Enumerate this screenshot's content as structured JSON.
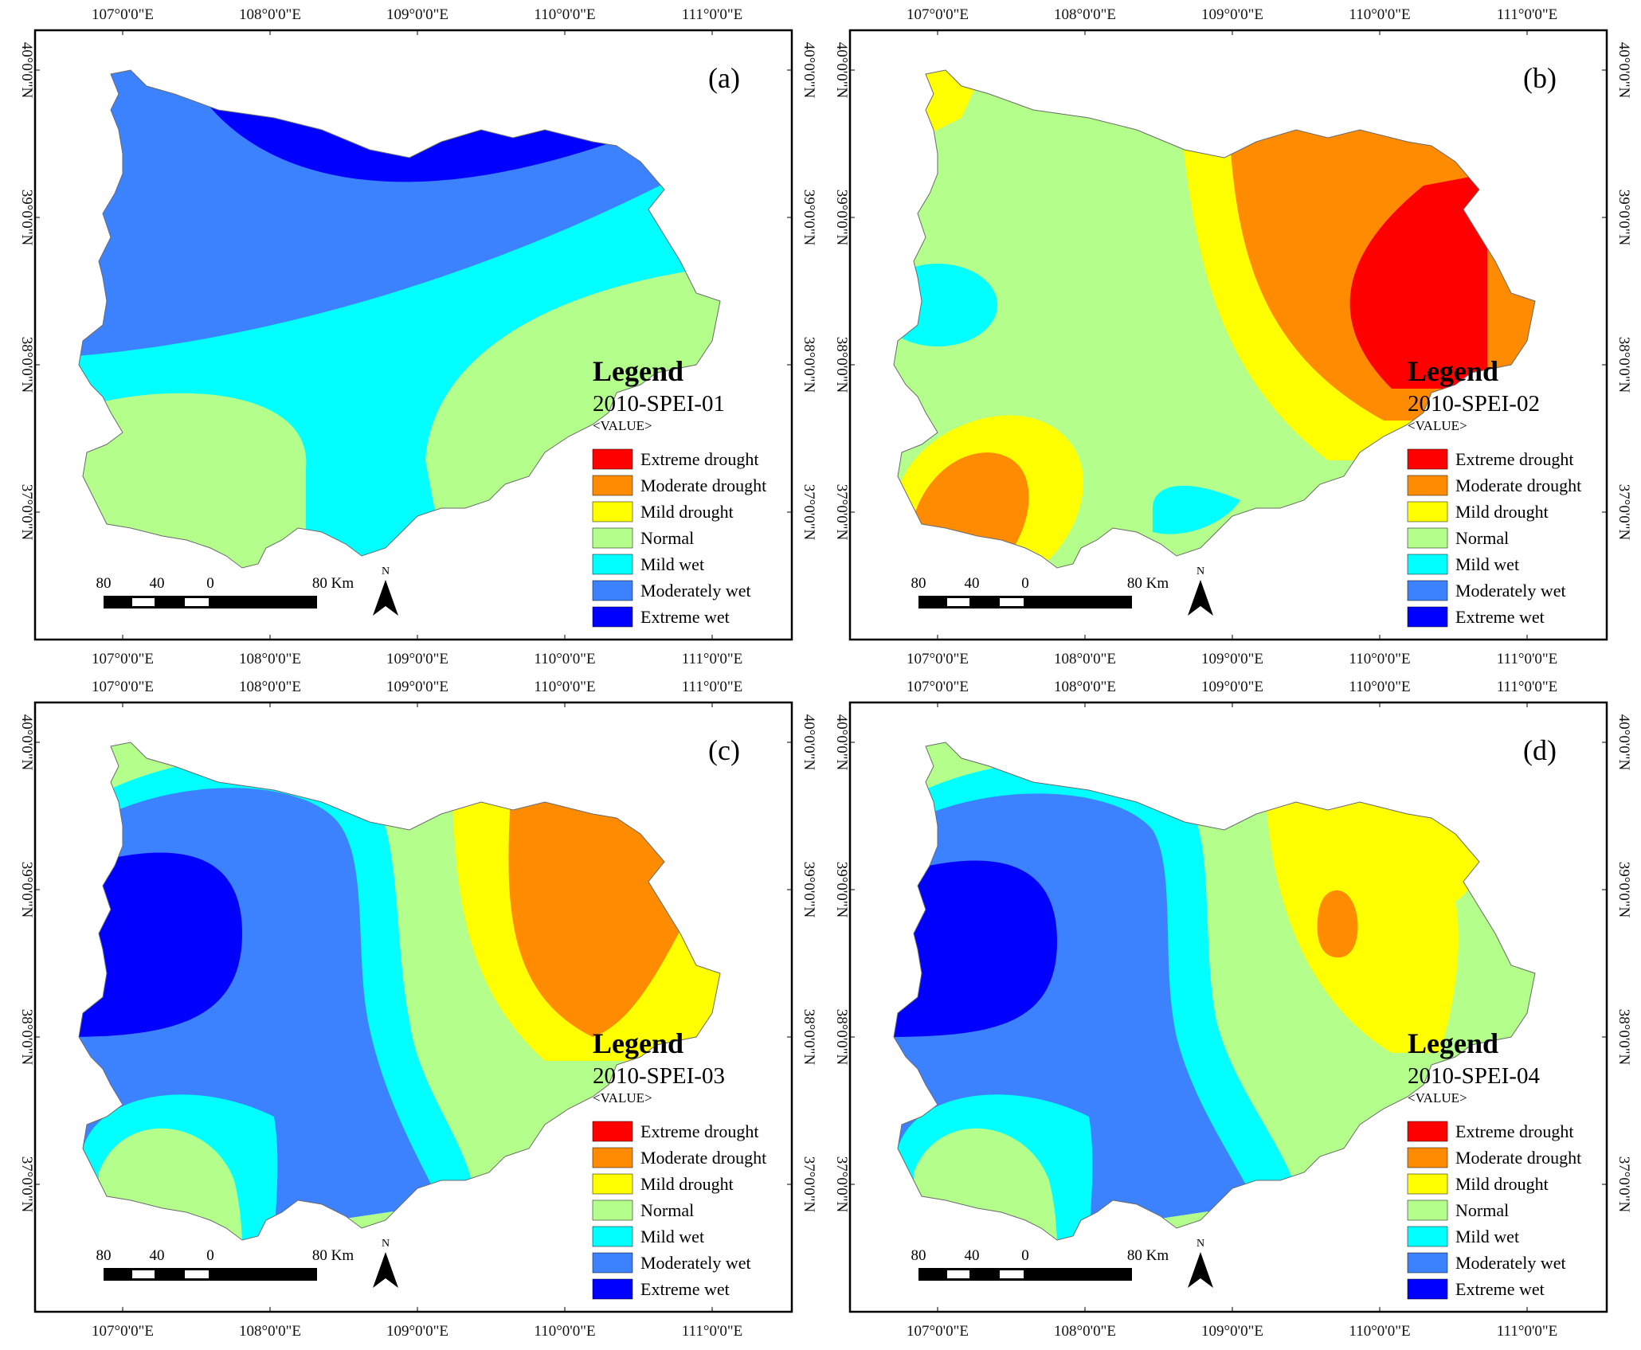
{
  "colors": {
    "extreme_drought": "#ff0000",
    "moderate_drought": "#ff8c00",
    "mild_drought": "#ffff00",
    "normal": "#b4ff8c",
    "mild_wet": "#00ffff",
    "moderately_wet": "#3c82ff",
    "extreme_wet": "#0000ff"
  },
  "lon_ticks": [
    "107°0'0\"E",
    "108°0'0\"E",
    "109°0'0\"E",
    "110°0'0\"E",
    "111°0'0\"E"
  ],
  "lat_ticks": [
    "40°0'0\"N",
    "39°0'0\"N",
    "38°0'0\"N",
    "37°0'0\"N"
  ],
  "legend": {
    "title": "Legend",
    "field": "<VALUE>",
    "classes": [
      "Extreme drought",
      "Moderate drought",
      "Mild drought",
      "Normal",
      "Mild wet",
      "Moderately wet",
      "Extreme wet"
    ]
  },
  "scale_bar": {
    "labels": [
      "80",
      "40",
      "0",
      "80 Km"
    ]
  },
  "north_arrow": {
    "label": "N"
  },
  "panels": [
    {
      "label": "(a)",
      "legend_subtitle": "2010-SPEI-01"
    },
    {
      "label": "(b)",
      "legend_subtitle": "2010-SPEI-02"
    },
    {
      "label": "(c)",
      "legend_subtitle": "2010-SPEI-03"
    },
    {
      "label": "(d)",
      "legend_subtitle": "2010-SPEI-04"
    }
  ]
}
